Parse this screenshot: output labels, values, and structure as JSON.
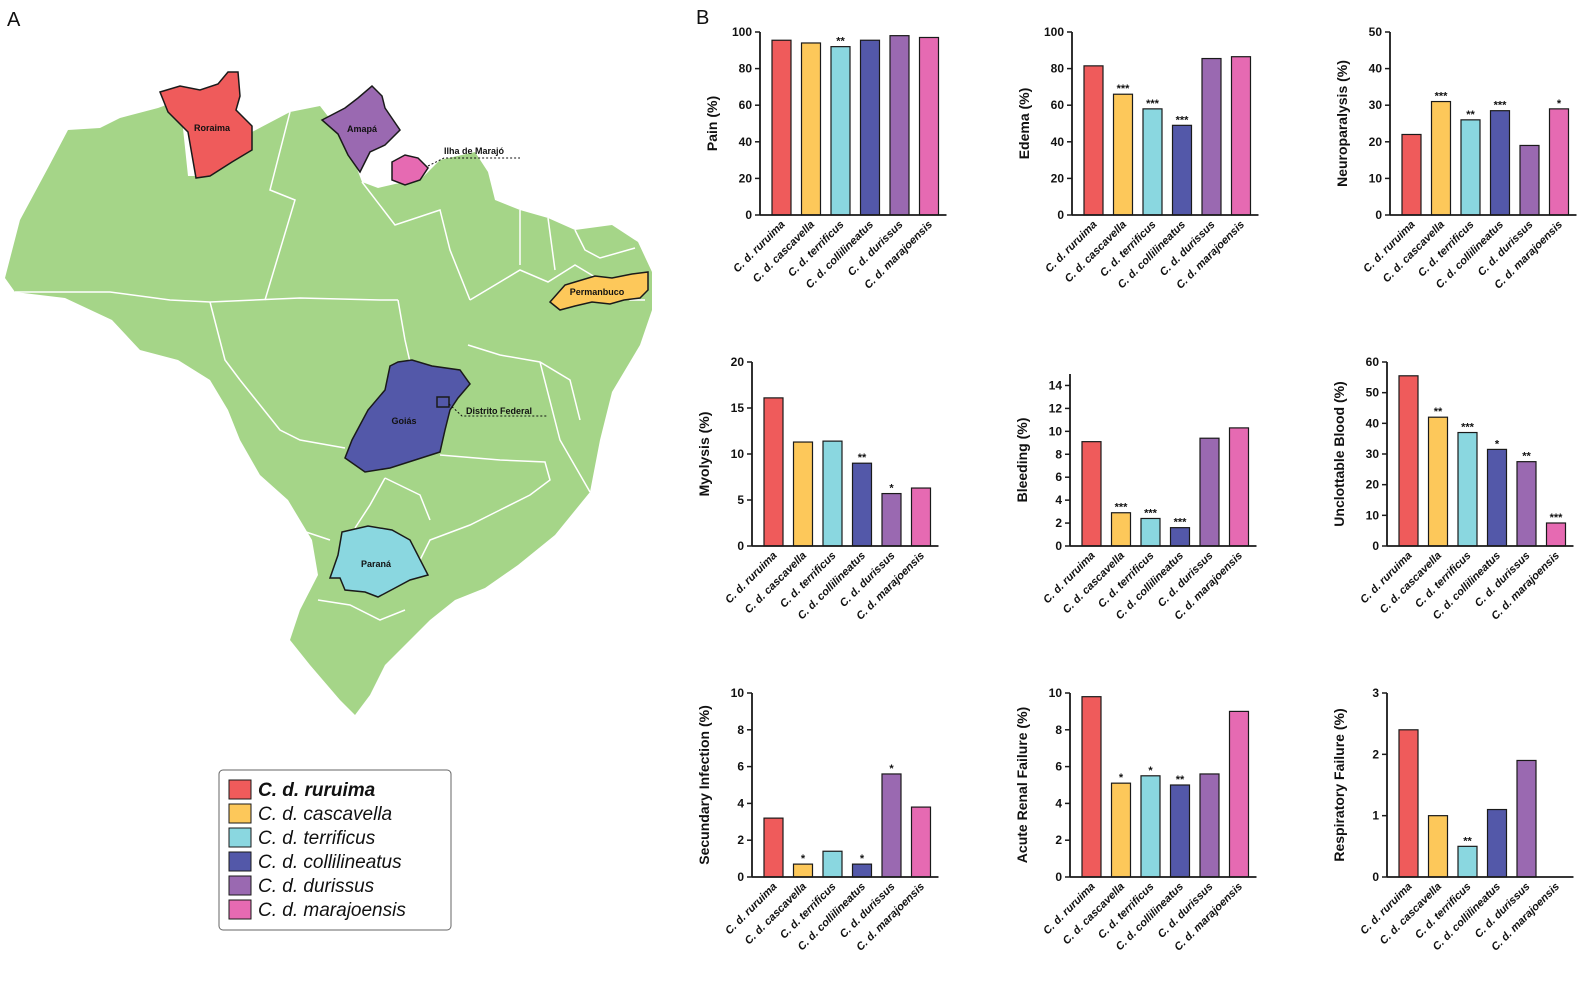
{
  "figure": {
    "panel_a_label": "A",
    "panel_b_label": "B"
  },
  "colors": {
    "land": "#a5d588",
    "border": "#ffffff",
    "outline": "#1a1a1a",
    "species": [
      "#ef5b5b",
      "#fdc85a",
      "#8ad7e0",
      "#5358a9",
      "#9a69b1",
      "#e66ab2"
    ]
  },
  "map": {
    "regions": [
      {
        "label": "Roraima"
      },
      {
        "label": "Amapá"
      },
      {
        "label": "Ilha de Marajó"
      },
      {
        "label": "Permanbuco"
      },
      {
        "label": "Goiás"
      },
      {
        "label": "Distrito Federal"
      },
      {
        "label": "Paraná"
      }
    ]
  },
  "legend": {
    "items": [
      {
        "label": "C. d. ruruima"
      },
      {
        "label": "C. d. cascavella"
      },
      {
        "label": "C. d. terrificus"
      },
      {
        "label": "C. d. collilineatus"
      },
      {
        "label": "C. d. durissus"
      },
      {
        "label": "C. d. marajoensis"
      }
    ]
  },
  "chart_data": [
    {
      "type": "bar",
      "ylabel": "Pain (%)",
      "ylim": [
        0,
        100
      ],
      "yticks": [
        0,
        20,
        40,
        60,
        80,
        100
      ],
      "categories": [
        "C. d. ruruima",
        "C. d. cascavella",
        "C. d. terrificus",
        "C. d. collilineatus",
        "C. d. durissus",
        "C. d. marajoensis"
      ],
      "values": [
        95.5,
        94,
        92,
        95.5,
        98,
        97
      ],
      "significance": [
        "",
        "",
        "**",
        "",
        "",
        ""
      ]
    },
    {
      "type": "bar",
      "ylabel": "Edema (%)",
      "ylim": [
        0,
        100
      ],
      "yticks": [
        0,
        20,
        40,
        60,
        80,
        100
      ],
      "categories": [
        "C. d. ruruima",
        "C. d. cascavella",
        "C. d. terrificus",
        "C. d. collilineatus",
        "C. d. durissus",
        "C. d. marajoensis"
      ],
      "values": [
        81.5,
        66,
        58,
        49,
        85.5,
        86.5
      ],
      "significance": [
        "",
        "***",
        "***",
        "***",
        "",
        ""
      ]
    },
    {
      "type": "bar",
      "ylabel": "Neuroparalysis (%)",
      "ylim": [
        0,
        50
      ],
      "yticks": [
        0,
        10,
        20,
        30,
        40,
        50
      ],
      "categories": [
        "C. d. ruruima",
        "C. d. cascavella",
        "C. d. terrificus",
        "C. d. collilineatus",
        "C. d. durissus",
        "C. d. marajoensis"
      ],
      "values": [
        22,
        31,
        26,
        28.5,
        19,
        29
      ],
      "significance": [
        "",
        "***",
        "**",
        "***",
        "",
        "*"
      ]
    },
    {
      "type": "bar",
      "ylabel": "Myolysis (%)",
      "ylim": [
        0,
        20
      ],
      "yticks": [
        0,
        5,
        10,
        15,
        20
      ],
      "categories": [
        "C. d. ruruima",
        "C. d. cascavella",
        "C. d. terrificus",
        "C. d. collilineatus",
        "C. d. durissus",
        "C. d. marajoensis"
      ],
      "values": [
        16.1,
        11.3,
        11.4,
        9,
        5.7,
        6.3
      ],
      "significance": [
        "",
        "",
        "",
        "**",
        "*",
        ""
      ]
    },
    {
      "type": "bar",
      "ylabel": "Bleeding (%)",
      "ylim": [
        0,
        15
      ],
      "yticks": [
        0,
        2,
        4,
        6,
        8,
        10,
        12,
        14
      ],
      "categories": [
        "C. d. ruruima",
        "C. d. cascavella",
        "C. d. terrificus",
        "C. d. collilineatus",
        "C. d. durissus",
        "C. d. marajoensis"
      ],
      "values": [
        9.1,
        2.9,
        2.4,
        1.6,
        9.4,
        10.3
      ],
      "significance": [
        "",
        "***",
        "***",
        "***",
        "",
        ""
      ]
    },
    {
      "type": "bar",
      "ylabel": "Unclottable Blood (%)",
      "ylim": [
        0,
        60
      ],
      "yticks": [
        0,
        10,
        20,
        30,
        40,
        50,
        60
      ],
      "categories": [
        "C. d. ruruima",
        "C. d. cascavella",
        "C. d. terrificus",
        "C. d. collilineatus",
        "C. d. durissus",
        "C. d. marajoensis"
      ],
      "values": [
        55.5,
        42,
        37,
        31.5,
        27.5,
        7.5
      ],
      "significance": [
        "",
        "**",
        "***",
        "*",
        "**",
        "***"
      ]
    },
    {
      "type": "bar",
      "ylabel": "Secundary Infection (%)",
      "ylim": [
        0,
        10
      ],
      "yticks": [
        0,
        2,
        4,
        6,
        8,
        10
      ],
      "categories": [
        "C. d. ruruima",
        "C. d. cascavella",
        "C. d. terrificus",
        "C. d. collilineatus",
        "C. d. durissus",
        "C. d. marajoensis"
      ],
      "values": [
        3.2,
        0.7,
        1.4,
        0.7,
        5.6,
        3.8
      ],
      "significance": [
        "",
        "*",
        "",
        "*",
        "*",
        ""
      ]
    },
    {
      "type": "bar",
      "ylabel": "Acute Renal Failure (%)",
      "ylim": [
        0,
        10
      ],
      "yticks": [
        0,
        2,
        4,
        6,
        8,
        10
      ],
      "categories": [
        "C. d. ruruima",
        "C. d. cascavella",
        "C. d. terrificus",
        "C. d. collilineatus",
        "C. d. durissus",
        "C. d. marajoensis"
      ],
      "values": [
        9.8,
        5.1,
        5.5,
        5,
        5.6,
        9
      ],
      "significance": [
        "",
        "*",
        "*",
        "**",
        "",
        ""
      ]
    },
    {
      "type": "bar",
      "ylabel": "Respiratory Failure (%)",
      "ylim": [
        0,
        3
      ],
      "yticks": [
        0,
        1,
        2,
        3
      ],
      "categories": [
        "C. d. ruruima",
        "C. d. cascavella",
        "C. d. terrificus",
        "C. d. collilineatus",
        "C. d. durissus",
        "C. d. marajoensis"
      ],
      "values": [
        2.4,
        1,
        0.5,
        1.1,
        1.9,
        0
      ],
      "significance": [
        "",
        "",
        "**",
        "",
        "",
        ""
      ]
    }
  ]
}
